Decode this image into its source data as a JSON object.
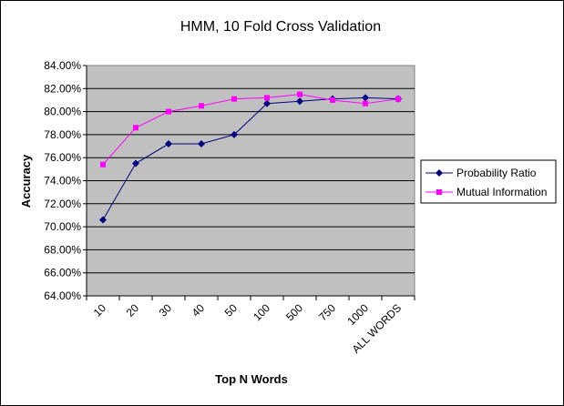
{
  "chart_data": {
    "type": "line",
    "title": "HMM, 10 Fold Cross Validation",
    "xlabel": "Top N Words",
    "ylabel": "Accuracy",
    "categories": [
      "10",
      "20",
      "30",
      "40",
      "50",
      "100",
      "500",
      "750",
      "1000",
      "ALL WORDS"
    ],
    "ylim": [
      0.64,
      0.84
    ],
    "yticks": [
      "64.00%",
      "66.00%",
      "68.00%",
      "70.00%",
      "72.00%",
      "74.00%",
      "76.00%",
      "78.00%",
      "80.00%",
      "82.00%",
      "84.00%"
    ],
    "ytick_values": [
      0.64,
      0.66,
      0.68,
      0.7,
      0.72,
      0.74,
      0.76,
      0.78,
      0.8,
      0.82,
      0.84
    ],
    "grid": true,
    "legend_position": "right",
    "plot_background": "#c0c0c0",
    "series": [
      {
        "name": "Probability Ratio",
        "color": "#000080",
        "marker": "diamond",
        "values": [
          0.706,
          0.755,
          0.772,
          0.772,
          0.78,
          0.807,
          0.809,
          0.811,
          0.812,
          0.811
        ]
      },
      {
        "name": "Mutual Information",
        "color": "#ff00ff",
        "marker": "square",
        "values": [
          0.754,
          0.786,
          0.8,
          0.805,
          0.811,
          0.812,
          0.815,
          0.81,
          0.807,
          0.811
        ]
      }
    ]
  }
}
